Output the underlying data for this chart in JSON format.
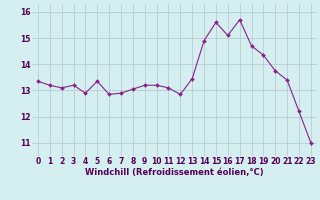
{
  "x": [
    0,
    1,
    2,
    3,
    4,
    5,
    6,
    7,
    8,
    9,
    10,
    11,
    12,
    13,
    14,
    15,
    16,
    17,
    18,
    19,
    20,
    21,
    22,
    23
  ],
  "y": [
    13.35,
    13.2,
    13.1,
    13.2,
    12.9,
    13.35,
    12.85,
    12.9,
    13.05,
    13.2,
    13.2,
    13.1,
    12.85,
    13.45,
    14.9,
    15.6,
    15.1,
    15.7,
    14.7,
    14.35,
    13.75,
    13.4,
    12.2,
    11.0
  ],
  "line_color": "#882288",
  "marker_color": "#882288",
  "bg_color": "#d5eef0",
  "grid_color": "#b0c8cc",
  "xlabel": "Windchill (Refroidissement éolien,°C)",
  "ylim": [
    10.5,
    16.3
  ],
  "xlim": [
    -0.5,
    23.5
  ],
  "yticks": [
    11,
    12,
    13,
    14,
    15,
    16
  ],
  "xticks": [
    0,
    1,
    2,
    3,
    4,
    5,
    6,
    7,
    8,
    9,
    10,
    11,
    12,
    13,
    14,
    15,
    16,
    17,
    18,
    19,
    20,
    21,
    22,
    23
  ],
  "tick_fontsize": 5.5,
  "xlabel_fontsize": 6.0,
  "marker_size": 2.0,
  "line_width": 0.8
}
